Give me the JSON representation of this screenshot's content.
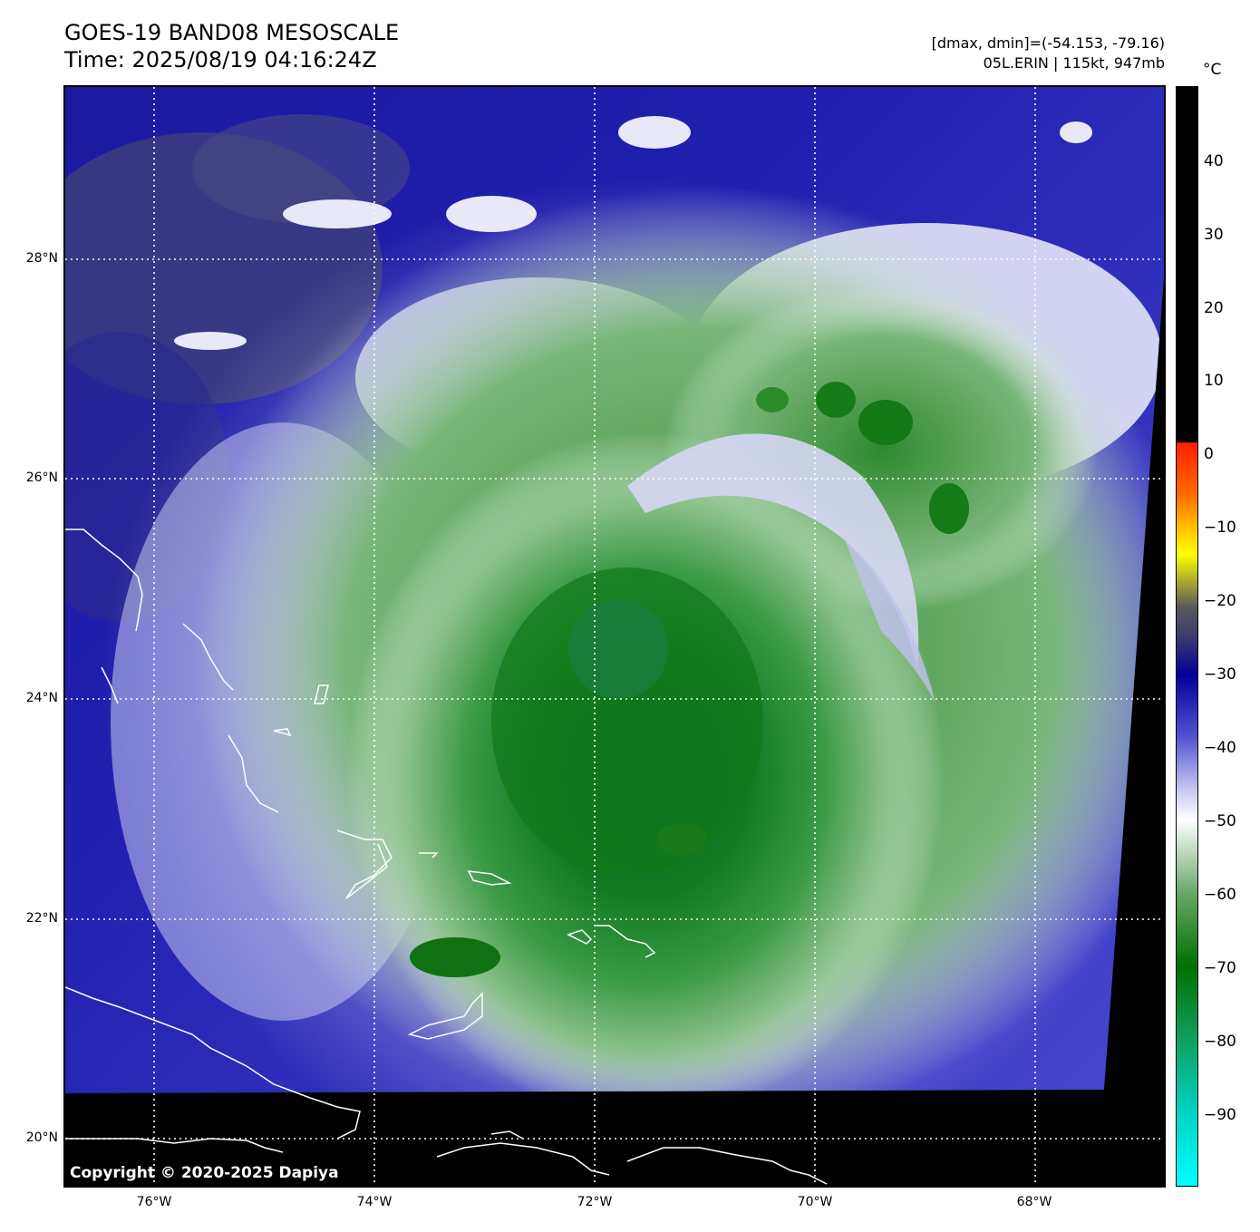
{
  "header": {
    "title_line1": "GOES-19 BAND08 MESOSCALE",
    "title_line2": "Time: 2025/08/19 04:16:24Z",
    "range_text": "[dmax, dmin]=(-54.153, -79.16)",
    "storm_text": "05L.ERIN | 115kt, 947mb"
  },
  "map": {
    "lat_labels": [
      "28°N",
      "26°N",
      "24°N",
      "22°N",
      "20°N"
    ],
    "lon_labels": [
      "76°W",
      "74°W",
      "72°W",
      "70°W",
      "68°W"
    ],
    "copyright": "Copyright © 2020-2025 Dapiya"
  },
  "colorbar": {
    "unit": "°C",
    "ticks": [
      "40",
      "30",
      "20",
      "10",
      "0",
      "−10",
      "−20",
      "−30",
      "−40",
      "−50",
      "−60",
      "−70",
      "−80",
      "−90"
    ],
    "colors": {
      "warm": "#000000",
      "red": "#ff2000",
      "yellow": "#ffff00",
      "blue": "#00009a",
      "white": "#ffffff",
      "green": "#007000",
      "cyan": "#00ffff"
    }
  }
}
